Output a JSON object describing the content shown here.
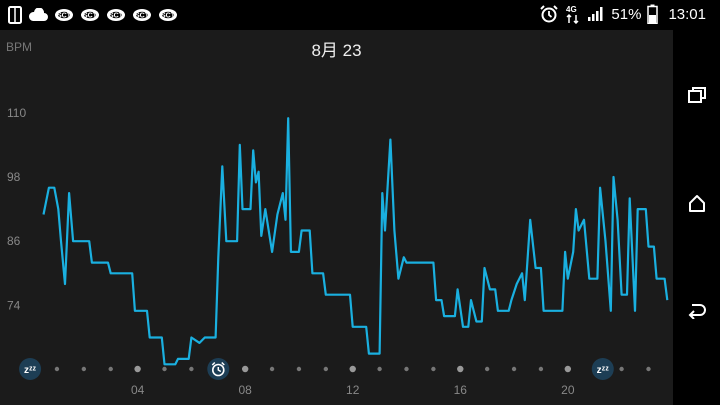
{
  "status_bar": {
    "battery": "51%",
    "time": "13:01",
    "network": "4G",
    "left_icons": [
      "device-icon",
      "cloud-icon",
      "notification-icon",
      "notification-icon",
      "notification-icon",
      "notification-icon",
      "notification-icon"
    ],
    "right_icons": [
      "alarm-icon",
      "network-4g-icon",
      "signal-icon"
    ]
  },
  "header": {
    "date": "8月 23",
    "unit": "BPM"
  },
  "colors": {
    "line": "#1ab0e0",
    "background": "#1b1b1b",
    "grid_text": "#888888",
    "badge": "#1d3e55"
  },
  "chart_data": {
    "type": "line",
    "title": "8月 23",
    "ylabel": "BPM",
    "xlabel": "",
    "yticks": [
      74,
      86,
      98,
      110
    ],
    "ylim": [
      61,
      118
    ],
    "xlim": [
      -0.3,
      23.8
    ],
    "xtick_labels": [
      {
        "x": 4,
        "label": "04"
      },
      {
        "x": 8,
        "label": "08"
      },
      {
        "x": 12,
        "label": "12"
      },
      {
        "x": 16,
        "label": "16"
      },
      {
        "x": 20,
        "label": "20"
      }
    ],
    "timeline_markers": [
      {
        "x": 0,
        "type": "sleep",
        "icon": "sleep-zzz-icon"
      },
      {
        "x": 7,
        "type": "alarm",
        "icon": "alarm-icon"
      },
      {
        "x": 21.3,
        "type": "sleep",
        "icon": "sleep-zzz-icon"
      }
    ],
    "series": [
      {
        "values": [
          [
            0.5,
            91
          ],
          [
            0.7,
            96
          ],
          [
            0.9,
            96
          ],
          [
            1.05,
            92
          ],
          [
            1.15,
            86
          ],
          [
            1.3,
            78
          ],
          [
            1.45,
            95
          ],
          [
            1.6,
            86
          ],
          [
            2.2,
            86
          ],
          [
            2.3,
            82
          ],
          [
            2.9,
            82
          ],
          [
            3.0,
            80
          ],
          [
            3.8,
            80
          ],
          [
            3.9,
            73
          ],
          [
            4.35,
            73
          ],
          [
            4.45,
            68
          ],
          [
            4.9,
            68
          ],
          [
            5.0,
            63
          ],
          [
            5.4,
            63
          ],
          [
            5.5,
            64
          ],
          [
            5.9,
            64
          ],
          [
            6.0,
            68
          ],
          [
            6.3,
            67
          ],
          [
            6.5,
            68
          ],
          [
            6.9,
            68
          ],
          [
            7.0,
            83
          ],
          [
            7.15,
            100
          ],
          [
            7.3,
            86
          ],
          [
            7.7,
            86
          ],
          [
            7.8,
            104
          ],
          [
            7.9,
            92
          ],
          [
            8.2,
            92
          ],
          [
            8.3,
            103
          ],
          [
            8.4,
            97
          ],
          [
            8.5,
            99
          ],
          [
            8.6,
            87
          ],
          [
            8.75,
            92
          ],
          [
            9.0,
            84
          ],
          [
            9.2,
            91
          ],
          [
            9.4,
            95
          ],
          [
            9.5,
            90
          ],
          [
            9.6,
            109
          ],
          [
            9.7,
            84
          ],
          [
            10.0,
            84
          ],
          [
            10.1,
            88
          ],
          [
            10.4,
            88
          ],
          [
            10.5,
            80
          ],
          [
            10.9,
            80
          ],
          [
            11.0,
            76
          ],
          [
            11.9,
            76
          ],
          [
            12.0,
            70
          ],
          [
            12.5,
            70
          ],
          [
            12.6,
            65
          ],
          [
            13.0,
            65
          ],
          [
            13.1,
            95
          ],
          [
            13.2,
            88
          ],
          [
            13.4,
            105
          ],
          [
            13.55,
            88
          ],
          [
            13.7,
            79
          ],
          [
            13.9,
            83
          ],
          [
            14.0,
            82
          ],
          [
            15.0,
            82
          ],
          [
            15.1,
            75
          ],
          [
            15.3,
            75
          ],
          [
            15.4,
            72
          ],
          [
            15.8,
            72
          ],
          [
            15.9,
            77
          ],
          [
            16.1,
            70
          ],
          [
            16.3,
            70
          ],
          [
            16.4,
            75
          ],
          [
            16.6,
            71
          ],
          [
            16.8,
            71
          ],
          [
            16.9,
            81
          ],
          [
            17.1,
            77
          ],
          [
            17.3,
            77
          ],
          [
            17.4,
            73
          ],
          [
            17.8,
            73
          ],
          [
            17.9,
            75
          ],
          [
            18.1,
            78
          ],
          [
            18.3,
            80
          ],
          [
            18.4,
            75
          ],
          [
            18.6,
            90
          ],
          [
            18.8,
            81
          ],
          [
            19.0,
            81
          ],
          [
            19.1,
            73
          ],
          [
            19.8,
            73
          ],
          [
            19.9,
            84
          ],
          [
            20.0,
            79
          ],
          [
            20.2,
            84
          ],
          [
            20.3,
            92
          ],
          [
            20.4,
            88
          ],
          [
            20.6,
            90
          ],
          [
            20.8,
            79
          ],
          [
            21.1,
            79
          ],
          [
            21.2,
            96
          ],
          [
            21.4,
            86
          ],
          [
            21.6,
            73
          ],
          [
            21.7,
            98
          ],
          [
            21.85,
            90
          ],
          [
            22.0,
            76
          ],
          [
            22.2,
            76
          ],
          [
            22.3,
            94
          ],
          [
            22.5,
            73
          ],
          [
            22.6,
            92
          ],
          [
            22.9,
            92
          ],
          [
            23.0,
            85
          ],
          [
            23.2,
            85
          ],
          [
            23.3,
            79
          ],
          [
            23.6,
            79
          ],
          [
            23.7,
            75
          ]
        ]
      }
    ]
  }
}
